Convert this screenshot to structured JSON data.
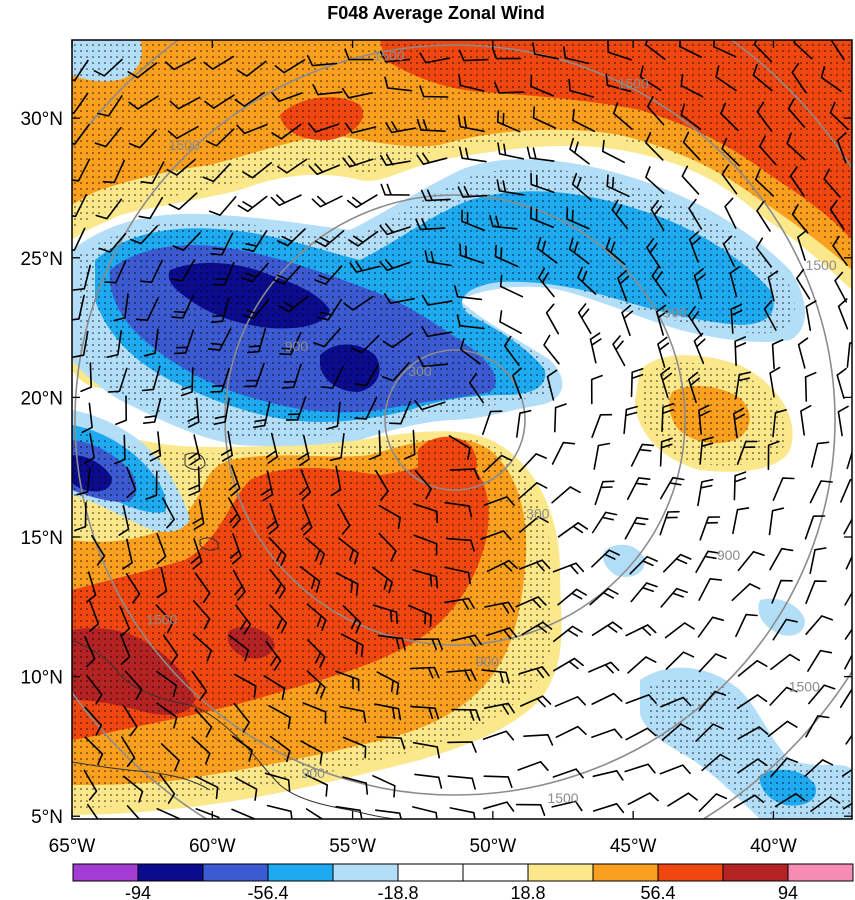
{
  "chart_data": {
    "type": "heatmap",
    "title": "F048 Average Zonal Wind",
    "x_ticks": [
      {
        "label": "65°W",
        "lon": -65
      },
      {
        "label": "60°W",
        "lon": -60
      },
      {
        "label": "55°W",
        "lon": -55
      },
      {
        "label": "50°W",
        "lon": -50
      },
      {
        "label": "45°W",
        "lon": -45
      },
      {
        "label": "40°W",
        "lon": -40
      }
    ],
    "y_ticks": [
      {
        "label": "30°N",
        "lat": 30
      },
      {
        "label": "25°N",
        "lat": 25
      },
      {
        "label": "20°N",
        "lat": 20
      },
      {
        "label": "15°N",
        "lat": 15
      },
      {
        "label": "10°N",
        "lat": 10
      },
      {
        "label": "5°N",
        "lat": 5
      }
    ],
    "xlim": [
      -65,
      -37.2
    ],
    "ylim": [
      4.9,
      32.8
    ],
    "colorbar": {
      "colors": [
        "#a23cd2",
        "#0b0b8e",
        "#3c5ad2",
        "#1eaaf0",
        "#b3def8",
        "#ffffff",
        "#ffffff",
        "#fbe88a",
        "#fba01e",
        "#f0460f",
        "#b42323",
        "#f58cb4"
      ],
      "tick_labels": [
        "-94",
        "-56.4",
        "-18.8",
        "18.8",
        "56.4",
        "94"
      ],
      "tick_values": [
        -94,
        -56.4,
        -18.8,
        18.8,
        56.4,
        94
      ],
      "levels": [
        -112.8,
        -94,
        -75.2,
        -56.4,
        -37.6,
        -18.8,
        0,
        18.8,
        37.6,
        56.4,
        75.2,
        94,
        112.8
      ]
    },
    "height_contour_labels": [
      {
        "text": "300",
        "lon": -52.6,
        "lat": 20.9
      },
      {
        "text": "300",
        "lon": -48.4,
        "lat": 15.8
      },
      {
        "text": "900",
        "lon": -57.0,
        "lat": 21.8
      },
      {
        "text": "900",
        "lon": -43.5,
        "lat": 23.0
      },
      {
        "text": "900",
        "lon": -50.2,
        "lat": 10.5
      },
      {
        "text": "900",
        "lon": -41.6,
        "lat": 14.3
      },
      {
        "text": "1500",
        "lon": -53.7,
        "lat": 32.2
      },
      {
        "text": "1500",
        "lon": -45.0,
        "lat": 31.2
      },
      {
        "text": "1500",
        "lon": -61.0,
        "lat": 29.0
      },
      {
        "text": "1500",
        "lon": -38.3,
        "lat": 24.7
      },
      {
        "text": "1500",
        "lon": -61.8,
        "lat": 12.0
      },
      {
        "text": "1500",
        "lon": -38.9,
        "lat": 9.6
      },
      {
        "text": "1500",
        "lon": -47.5,
        "lat": 5.6
      },
      {
        "text": "900",
        "lon": -56.4,
        "lat": 6.5
      }
    ]
  }
}
